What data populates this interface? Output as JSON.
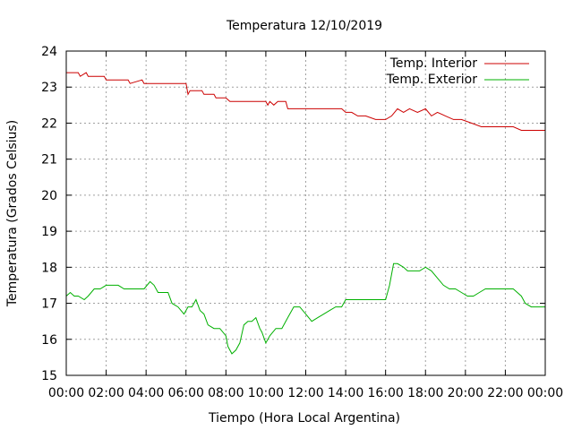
{
  "chart_data": {
    "type": "line",
    "title": "Temperatura 12/10/2019",
    "xlabel": "Tiempo (Hora Local Argentina)",
    "ylabel": "Temperatura (Grados Celsius)",
    "x_ticks": [
      "00:00",
      "02:00",
      "04:00",
      "06:00",
      "08:00",
      "10:00",
      "12:00",
      "14:00",
      "16:00",
      "18:00",
      "20:00",
      "22:00",
      "00:00"
    ],
    "y_ticks": [
      15,
      16,
      17,
      18,
      19,
      20,
      21,
      22,
      23,
      24
    ],
    "xlim_hours": [
      0,
      24
    ],
    "ylim": [
      15,
      24
    ],
    "grid": true,
    "legend_position": "top-right",
    "series": [
      {
        "name": "Temp. Interior",
        "color": "#cc0000",
        "x_hours": [
          0.0,
          0.6,
          0.7,
          1.0,
          1.1,
          1.3,
          1.9,
          2.0,
          2.1,
          2.3,
          3.0,
          3.1,
          3.2,
          3.8,
          3.9,
          4.4,
          6.0,
          6.1,
          6.2,
          6.4,
          6.8,
          6.9,
          7.4,
          7.5,
          8.0,
          8.2,
          9.0,
          9.5,
          10.0,
          10.1,
          10.2,
          10.4,
          10.6,
          11.0,
          11.1,
          11.5,
          12.2,
          12.8,
          13.5,
          13.8,
          14.0,
          14.3,
          14.6,
          15.0,
          15.5,
          15.8,
          16.0,
          16.3,
          16.6,
          16.9,
          17.2,
          17.6,
          18.0,
          18.3,
          18.6,
          19.0,
          19.4,
          19.8,
          20.3,
          20.8,
          21.2,
          21.6,
          22.0,
          22.4,
          22.8,
          23.2,
          23.6,
          24.0
        ],
        "values": [
          23.4,
          23.4,
          23.3,
          23.4,
          23.3,
          23.3,
          23.3,
          23.2,
          23.2,
          23.2,
          23.2,
          23.2,
          23.1,
          23.2,
          23.1,
          23.1,
          23.1,
          22.8,
          22.9,
          22.9,
          22.9,
          22.8,
          22.8,
          22.7,
          22.7,
          22.6,
          22.6,
          22.6,
          22.6,
          22.5,
          22.6,
          22.5,
          22.6,
          22.6,
          22.4,
          22.4,
          22.4,
          22.4,
          22.4,
          22.4,
          22.3,
          22.3,
          22.2,
          22.2,
          22.1,
          22.1,
          22.1,
          22.2,
          22.4,
          22.3,
          22.4,
          22.3,
          22.4,
          22.2,
          22.3,
          22.2,
          22.1,
          22.1,
          22.0,
          21.9,
          21.9,
          21.9,
          21.9,
          21.9,
          21.8,
          21.8,
          21.8,
          21.8
        ]
      },
      {
        "name": "Temp. Exterior",
        "color": "#00b000",
        "x_hours": [
          0.0,
          0.2,
          0.4,
          0.6,
          0.9,
          1.1,
          1.4,
          1.7,
          2.0,
          2.3,
          2.6,
          2.9,
          3.2,
          3.6,
          3.9,
          4.2,
          4.4,
          4.6,
          4.9,
          5.1,
          5.3,
          5.6,
          5.9,
          6.1,
          6.3,
          6.5,
          6.7,
          6.9,
          7.1,
          7.4,
          7.7,
          8.0,
          8.1,
          8.3,
          8.5,
          8.7,
          8.9,
          9.1,
          9.3,
          9.5,
          9.7,
          9.8,
          10.0,
          10.2,
          10.5,
          10.8,
          11.1,
          11.4,
          11.7,
          12.0,
          12.3,
          12.6,
          12.9,
          13.2,
          13.5,
          13.8,
          14.0,
          14.5,
          15.0,
          15.5,
          16.0,
          16.2,
          16.4,
          16.6,
          16.9,
          17.1,
          17.4,
          17.7,
          18.0,
          18.3,
          18.6,
          18.9,
          19.2,
          19.5,
          19.8,
          20.1,
          20.4,
          20.7,
          21.0,
          21.3,
          21.6,
          21.9,
          22.1,
          22.4,
          22.6,
          22.8,
          23.0,
          23.3,
          23.6,
          24.0
        ],
        "values": [
          17.2,
          17.3,
          17.2,
          17.2,
          17.1,
          17.2,
          17.4,
          17.4,
          17.5,
          17.5,
          17.5,
          17.4,
          17.4,
          17.4,
          17.4,
          17.6,
          17.5,
          17.3,
          17.3,
          17.3,
          17.0,
          16.9,
          16.7,
          16.9,
          16.9,
          17.1,
          16.8,
          16.7,
          16.4,
          16.3,
          16.3,
          16.1,
          15.8,
          15.6,
          15.7,
          15.9,
          16.4,
          16.5,
          16.5,
          16.6,
          16.3,
          16.2,
          15.9,
          16.1,
          16.3,
          16.3,
          16.6,
          16.9,
          16.9,
          16.7,
          16.5,
          16.6,
          16.7,
          16.8,
          16.9,
          16.9,
          17.1,
          17.1,
          17.1,
          17.1,
          17.1,
          17.5,
          18.1,
          18.1,
          18.0,
          17.9,
          17.9,
          17.9,
          18.0,
          17.9,
          17.7,
          17.5,
          17.4,
          17.4,
          17.3,
          17.2,
          17.2,
          17.3,
          17.4,
          17.4,
          17.4,
          17.4,
          17.4,
          17.4,
          17.3,
          17.2,
          17.0,
          16.9,
          16.9,
          16.9
        ]
      }
    ]
  }
}
